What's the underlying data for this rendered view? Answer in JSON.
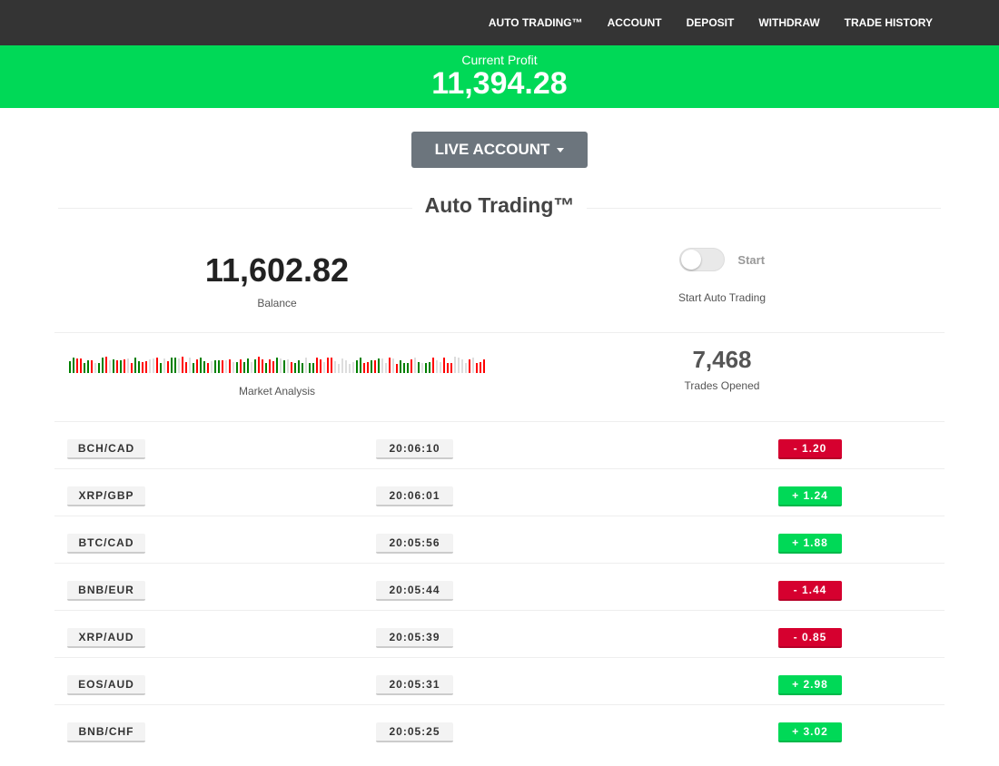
{
  "nav": [
    "AUTO TRADING™",
    "ACCOUNT",
    "DEPOSIT",
    "WITHDRAW",
    "TRADE HISTORY"
  ],
  "profit": {
    "label": "Current Profit",
    "value": "11,394.28"
  },
  "account_button": "LIVE ACCOUNT",
  "section_title": "Auto Trading™",
  "balance": {
    "value": "11,602.82",
    "label": "Balance"
  },
  "auto": {
    "toggle_label": "Start",
    "caption": "Start Auto Trading",
    "on": false
  },
  "market": {
    "label": "Market Analysis",
    "colors": {
      "up": "#008000",
      "down": "#ff0000",
      "neutral": "#dddddd"
    }
  },
  "trades": {
    "value": "7,468",
    "label": "Trades Opened"
  },
  "rows": [
    {
      "pair": "BCH/CAD",
      "time": "20:06:10",
      "change": "-  1.20",
      "dir": "neg"
    },
    {
      "pair": "XRP/GBP",
      "time": "20:06:01",
      "change": "+  1.24",
      "dir": "pos"
    },
    {
      "pair": "BTC/CAD",
      "time": "20:05:56",
      "change": "+  1.88",
      "dir": "pos"
    },
    {
      "pair": "BNB/EUR",
      "time": "20:05:44",
      "change": "-  1.44",
      "dir": "neg"
    },
    {
      "pair": "XRP/AUD",
      "time": "20:05:39",
      "change": "-  0.85",
      "dir": "neg"
    },
    {
      "pair": "EOS/AUD",
      "time": "20:05:31",
      "change": "+  2.98",
      "dir": "pos"
    },
    {
      "pair": "BNB/CHF",
      "time": "20:05:25",
      "change": "+  3.02",
      "dir": "pos"
    }
  ]
}
